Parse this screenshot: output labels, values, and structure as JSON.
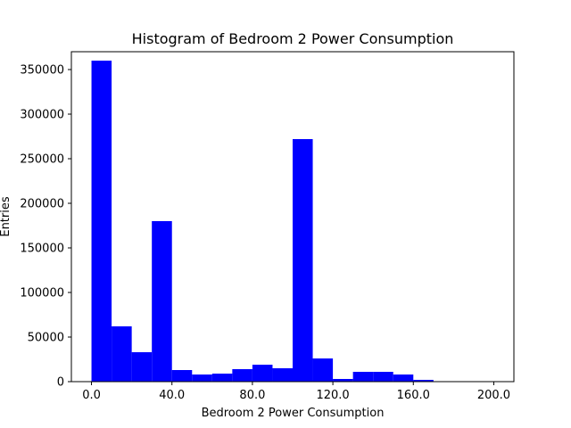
{
  "chart_data": {
    "type": "bar",
    "title": "Histogram of Bedroom 2 Power Consumption",
    "xlabel": "Bedroom 2 Power Consumption",
    "ylabel": "Entries",
    "bin_edges": [
      0,
      10,
      20,
      30,
      40,
      50,
      60,
      70,
      80,
      90,
      100,
      110,
      120,
      130,
      140,
      150,
      160,
      170,
      180,
      190,
      200
    ],
    "values": [
      360000,
      62000,
      33000,
      180000,
      13000,
      8000,
      9000,
      14000,
      19000,
      15000,
      272000,
      26000,
      3000,
      11000,
      11000,
      8000,
      2000,
      0,
      0,
      0
    ],
    "xlim": [
      -10,
      210
    ],
    "ylim": [
      0,
      370000
    ],
    "xticks": [
      0,
      40,
      80,
      120,
      160,
      200
    ],
    "xtick_labels": [
      "0.0",
      "40.0",
      "80.0",
      "120.0",
      "160.0",
      "200.0"
    ],
    "yticks": [
      0,
      50000,
      100000,
      150000,
      200000,
      250000,
      300000,
      350000
    ],
    "ytick_labels": [
      "0",
      "50000",
      "100000",
      "150000",
      "200000",
      "250000",
      "300000",
      "350000"
    ],
    "bar_color": "#0000ff",
    "grid": false
  }
}
